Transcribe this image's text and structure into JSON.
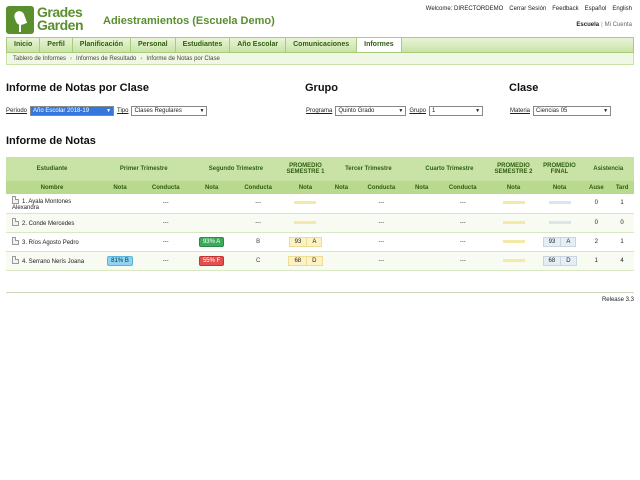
{
  "header": {
    "logo_line1": "Grades",
    "logo_line2": "Garden",
    "title": "Adiestramientos (Escuela Demo)",
    "welcome": "Welcome: DIRECTORDEMO",
    "logout": "Cerrar Sesión",
    "feedback": "Feedback",
    "lang_es": "Español",
    "lang_en": "English",
    "school_link": "Escuela",
    "account_link": "Mi Cuenta"
  },
  "nav": {
    "items": [
      "Inicio",
      "Perfil",
      "Planificación",
      "Personal",
      "Estudiantes",
      "Año Escolar",
      "Comunicaciones",
      "Informes"
    ],
    "active_index": 7
  },
  "breadcrumb": [
    "Tablero de Informes",
    "Informes de Resultado",
    "Informe de Notas por Clase"
  ],
  "filters": {
    "section1_title": "Informe de Notas por Clase",
    "section2_title": "Grupo",
    "section3_title": "Clase",
    "periodo_label": "Período",
    "periodo_value": "Año Escolar 2018-19",
    "tipo_label": "Tipo",
    "tipo_value": "Clases Regulares",
    "programa_label": "Programa",
    "programa_value": "Quinto Grado",
    "grupo_label": "Grupo",
    "grupo_value": "1",
    "materia_label": "Materia",
    "materia_value": "Ciencias 05"
  },
  "report": {
    "title": "Informe de Notas",
    "groups": {
      "estudiante": "Estudiante",
      "t1": "Primer Trimestre",
      "t2": "Segundo Trimestre",
      "p1": "PROMEDIO SEMESTRE 1",
      "t3": "Tercer Trimestre",
      "t4": "Cuarto Trimestre",
      "p2": "PROMEDIO SEMESTRE 2",
      "pf": "PROMEDIO FINAL",
      "asistencia": "Asistencia"
    },
    "cols": {
      "nombre": "Nombre",
      "nota": "Nota",
      "conducta": "Conducta",
      "ause": "Ause",
      "tard": "Tard"
    },
    "rows": [
      {
        "name": "1. Ayala Montones Alexandra",
        "t1n": "",
        "t1c": "---",
        "t2n": "",
        "t2c": "---",
        "p1n": "",
        "p1l": "",
        "t3n": "",
        "t3c": "---",
        "t4n": "",
        "t4c": "---",
        "p2": "",
        "pfn": "",
        "pfl": "",
        "ause": "0",
        "tard": "1"
      },
      {
        "name": "2. Conde Mercedes",
        "t1n": "",
        "t1c": "---",
        "t2n": "",
        "t2c": "---",
        "p1n": "",
        "p1l": "",
        "t3n": "",
        "t3c": "---",
        "t4n": "",
        "t4c": "---",
        "p2": "",
        "pfn": "",
        "pfl": "",
        "ause": "0",
        "tard": "0"
      },
      {
        "name": "3. Ríos Agosto Pedro",
        "t1n": "",
        "t1c": "---",
        "t2n": "93% A",
        "t2c": "B",
        "p1n": "93",
        "p1l": "A",
        "t3n": "",
        "t3c": "---",
        "t4n": "",
        "t4c": "---",
        "p2": "",
        "pfn": "93",
        "pfl": "A",
        "ause": "2",
        "tard": "1"
      },
      {
        "name": "4. Serrano Nerís Joana",
        "t1n": "81% B",
        "t1c": "---",
        "t2n": "55% F",
        "t2c": "C",
        "p1n": "68",
        "p1l": "D",
        "t3n": "",
        "t3c": "---",
        "t4n": "",
        "t4c": "---",
        "p2": "",
        "pfn": "68",
        "pfl": "D",
        "ause": "1",
        "tard": "4"
      }
    ]
  },
  "footer": {
    "release": "Release 3.3"
  },
  "colors": {
    "brand": "#5a8f2e",
    "nav_bg": "#c9e3a6"
  }
}
